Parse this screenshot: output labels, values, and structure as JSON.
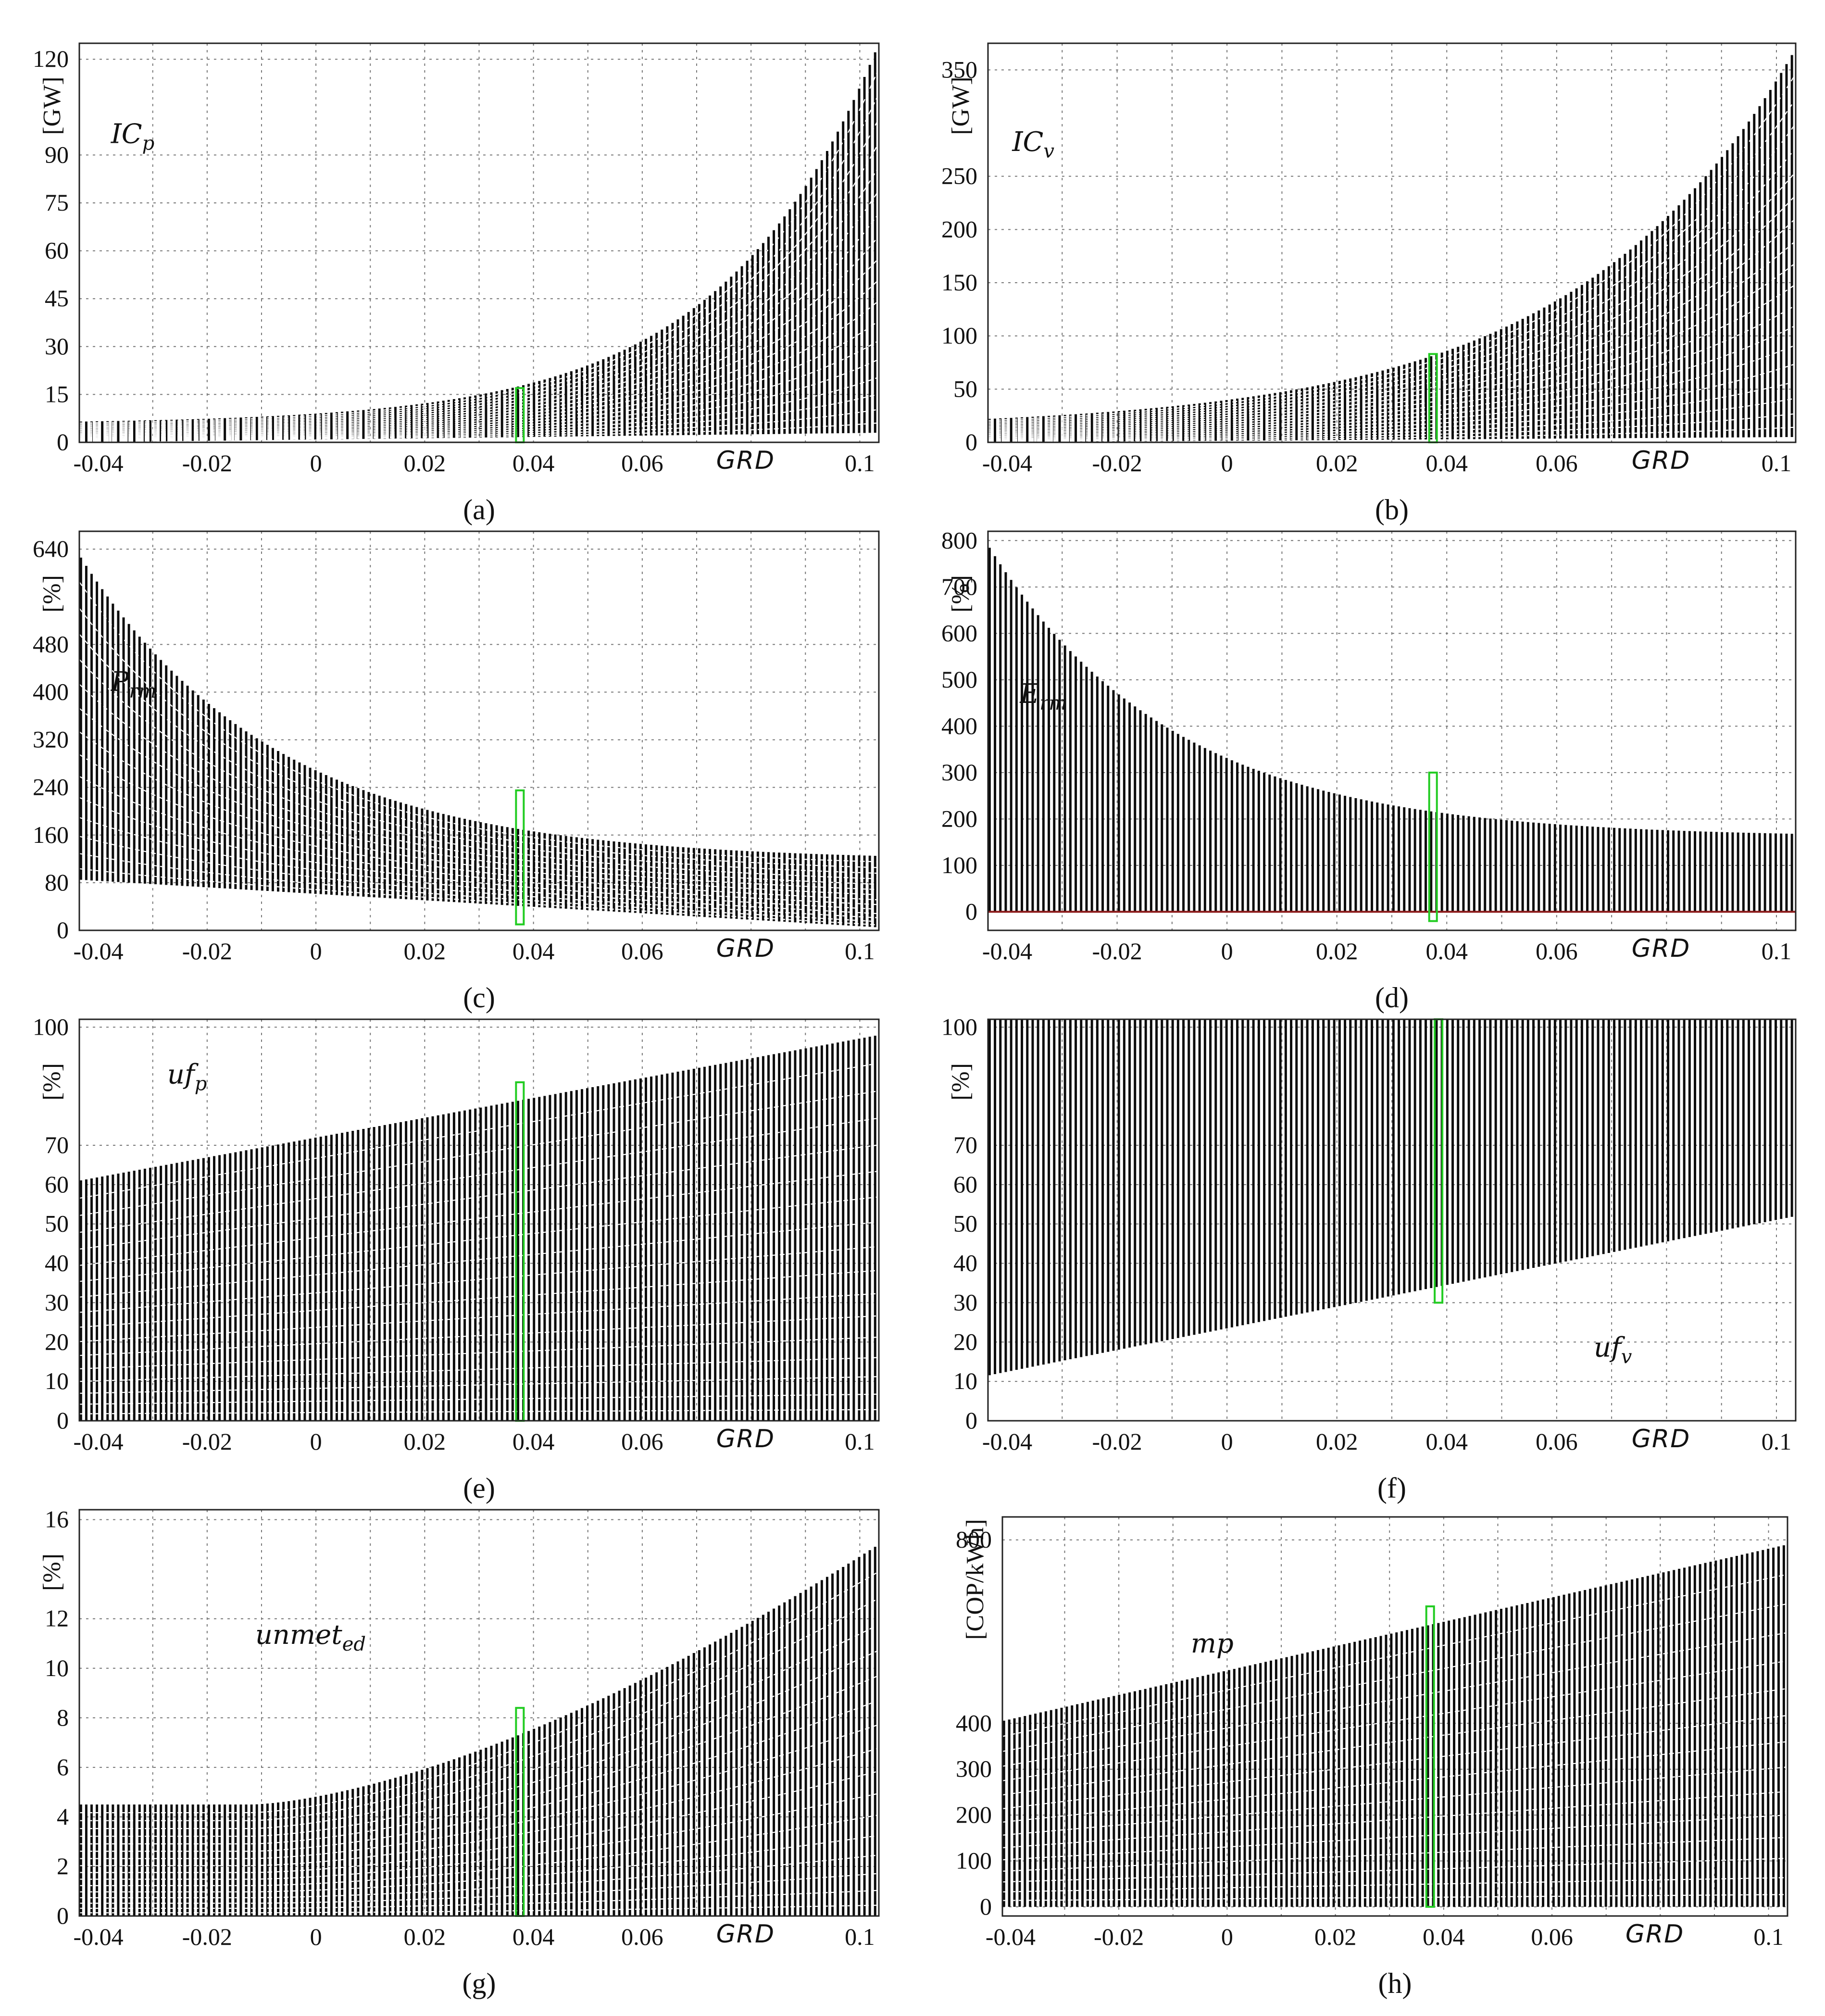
{
  "figure": {
    "x_axis_label": "GRD",
    "x_ticks": [
      "-0.04",
      "-0.02",
      "0",
      "0.02",
      "0.04",
      "0.06",
      "0.1"
    ],
    "highlight_grd": 0.0375
  },
  "chart_data": [
    {
      "id": "a",
      "type": "bar",
      "caption": "(a)",
      "metric_label": "IC_p",
      "metric_base": "IC",
      "metric_sub": "p",
      "ylabel": "[GW]",
      "yticks": [
        "0",
        "15",
        "30",
        "45",
        "60",
        "75",
        "90",
        "120"
      ],
      "ylim": [
        0,
        125
      ],
      "xlim": [
        -0.0435,
        0.1035
      ],
      "label_at": [
        0.0395,
        0.25
      ],
      "series_summary": {
        "top": {
          "kind": "exp",
          "at_min": 6.5,
          "at_max": 125,
          "k": 35
        },
        "bottom": {
          "kind": "lin",
          "at_min": 0,
          "at_max": 3
        },
        "inner_lines": 18
      },
      "highlight": {
        "grd": 0.0375,
        "y0": 0,
        "y1": 17
      }
    },
    {
      "id": "b",
      "type": "bar",
      "caption": "(b)",
      "metric_label": "IC_v",
      "metric_base": "IC",
      "metric_sub": "v",
      "ylabel": "[GW]",
      "yticks": [
        "0",
        "50",
        "100",
        "150",
        "200",
        "250",
        "350"
      ],
      "ylim": [
        0,
        375
      ],
      "xlim": [
        -0.0435,
        0.1035
      ],
      "label_at": [
        0.03,
        0.27
      ],
      "series_summary": {
        "top": {
          "kind": "exp",
          "at_min": 22,
          "at_max": 370,
          "k": 25
        },
        "bottom": {
          "kind": "lin",
          "at_min": 0,
          "at_max": 5
        },
        "inner_lines": 18
      },
      "highlight": {
        "grd": 0.0375,
        "y0": 0,
        "y1": 83
      }
    },
    {
      "id": "c",
      "type": "bar",
      "caption": "(c)",
      "metric_label": "P_rm",
      "metric_base": "P",
      "metric_sub": "rm",
      "ylabel": "[%]",
      "yticks": [
        "0",
        "80",
        "160",
        "240",
        "320",
        "400",
        "480",
        "640"
      ],
      "ylim": [
        0,
        670
      ],
      "xlim": [
        -0.0435,
        0.1035
      ],
      "label_at": [
        0.0395,
        0.4
      ],
      "series_summary": {
        "top": {
          "kind": "exp",
          "at_min": 630,
          "at_max": 125,
          "k": -28
        },
        "bottom": {
          "kind": "lin",
          "at_min": 85,
          "at_max": 5
        },
        "inner_lines": 14
      },
      "highlight": {
        "grd": 0.0375,
        "y0": 10,
        "y1": 235
      }
    },
    {
      "id": "d",
      "type": "bar",
      "caption": "(d)",
      "metric_label": "E_rm",
      "metric_base": "E",
      "metric_sub": "rm",
      "ylabel": "[%]",
      "yticks": [
        "0",
        "100",
        "200",
        "300",
        "400",
        "500",
        "600",
        "700",
        "800"
      ],
      "ylim": [
        -40,
        820
      ],
      "xlim": [
        -0.0435,
        0.1035
      ],
      "label_at": [
        0.0395,
        0.43
      ],
      "series_summary": {
        "top": {
          "kind": "exp",
          "at_min": 790,
          "at_max": 168,
          "k": -30
        },
        "bottom": {
          "kind": "lin",
          "at_min": 0,
          "at_max": 0
        },
        "inner_lines": 0,
        "baseline": 0
      },
      "highlight": {
        "grd": 0.0375,
        "y0": -20,
        "y1": 300
      }
    },
    {
      "id": "e",
      "type": "bar",
      "caption": "(e)",
      "metric_label": "uf_p",
      "metric_base": "uf",
      "metric_sub": "p",
      "ylabel": "[%]",
      "yticks": [
        "0",
        "10",
        "20",
        "30",
        "40",
        "50",
        "60",
        "70",
        "100"
      ],
      "ylim": [
        0,
        102
      ],
      "xlim": [
        -0.0435,
        0.1035
      ],
      "label_at": [
        0.11,
        0.16
      ],
      "series_summary": {
        "top": {
          "kind": "lin",
          "at_min": 61,
          "at_max": 98
        },
        "bottom": {
          "kind": "lin",
          "at_min": 0,
          "at_max": 0
        },
        "inner_lines": 16
      },
      "highlight": {
        "grd": 0.0375,
        "y0": 0,
        "y1": 86
      }
    },
    {
      "id": "f",
      "type": "bar",
      "caption": "(f)",
      "metric_label": "uf_v",
      "metric_base": "uf",
      "metric_sub": "v",
      "ylabel": "[%]",
      "yticks": [
        "0",
        "10",
        "20",
        "30",
        "40",
        "50",
        "60",
        "70",
        "100"
      ],
      "ylim": [
        0,
        102
      ],
      "xlim": [
        -0.0435,
        0.1035
      ],
      "label_at": [
        0.75,
        0.84
      ],
      "series_summary": {
        "top": {
          "kind": "lin",
          "at_min": 102,
          "at_max": 102
        },
        "bottom": {
          "kind": "lin",
          "at_min": 11.5,
          "at_max": 52
        },
        "inner_lines": 0
      },
      "highlight": {
        "grd": 0.0385,
        "y0": 30,
        "y1": 102
      }
    },
    {
      "id": "g",
      "type": "bar",
      "caption": "(g)",
      "metric_label": "unmet_ed",
      "metric_base": "unmet",
      "metric_sub": "ed",
      "ylabel": "[%]",
      "yticks": [
        "0",
        "2",
        "4",
        "6",
        "8",
        "10",
        "12",
        "16"
      ],
      "ylim": [
        0,
        16.4
      ],
      "xlim": [
        -0.0435,
        0.1035
      ],
      "label_at": [
        0.22,
        0.33
      ],
      "series_summary": {
        "top": {
          "kind": "exp2",
          "at_min": 4.5,
          "at_max": 15,
          "flat_until": -0.012
        },
        "bottom": {
          "kind": "lin",
          "at_min": 0,
          "at_max": 0
        },
        "inner_lines": 16
      },
      "highlight": {
        "grd": 0.0375,
        "y0": 0,
        "y1": 8.4
      }
    },
    {
      "id": "h",
      "type": "bar",
      "caption": "(h)",
      "metric_label": "mp",
      "metric_base": "mp",
      "metric_sub": "",
      "ylabel": "[COP/kWh]",
      "yticks": [
        "0",
        "100",
        "200",
        "300",
        "400",
        "800"
      ],
      "ylim": [
        -20,
        850
      ],
      "xlim": [
        -0.0415,
        0.1035
      ],
      "label_at": [
        0.24,
        0.34
      ],
      "series_summary": {
        "top": {
          "kind": "lin",
          "at_min": 405,
          "at_max": 790
        },
        "bottom": {
          "kind": "lin",
          "at_min": 0,
          "at_max": 0
        },
        "inner_lines": 14
      },
      "highlight": {
        "grd": 0.0375,
        "y0": 0,
        "y1": 655
      }
    }
  ]
}
